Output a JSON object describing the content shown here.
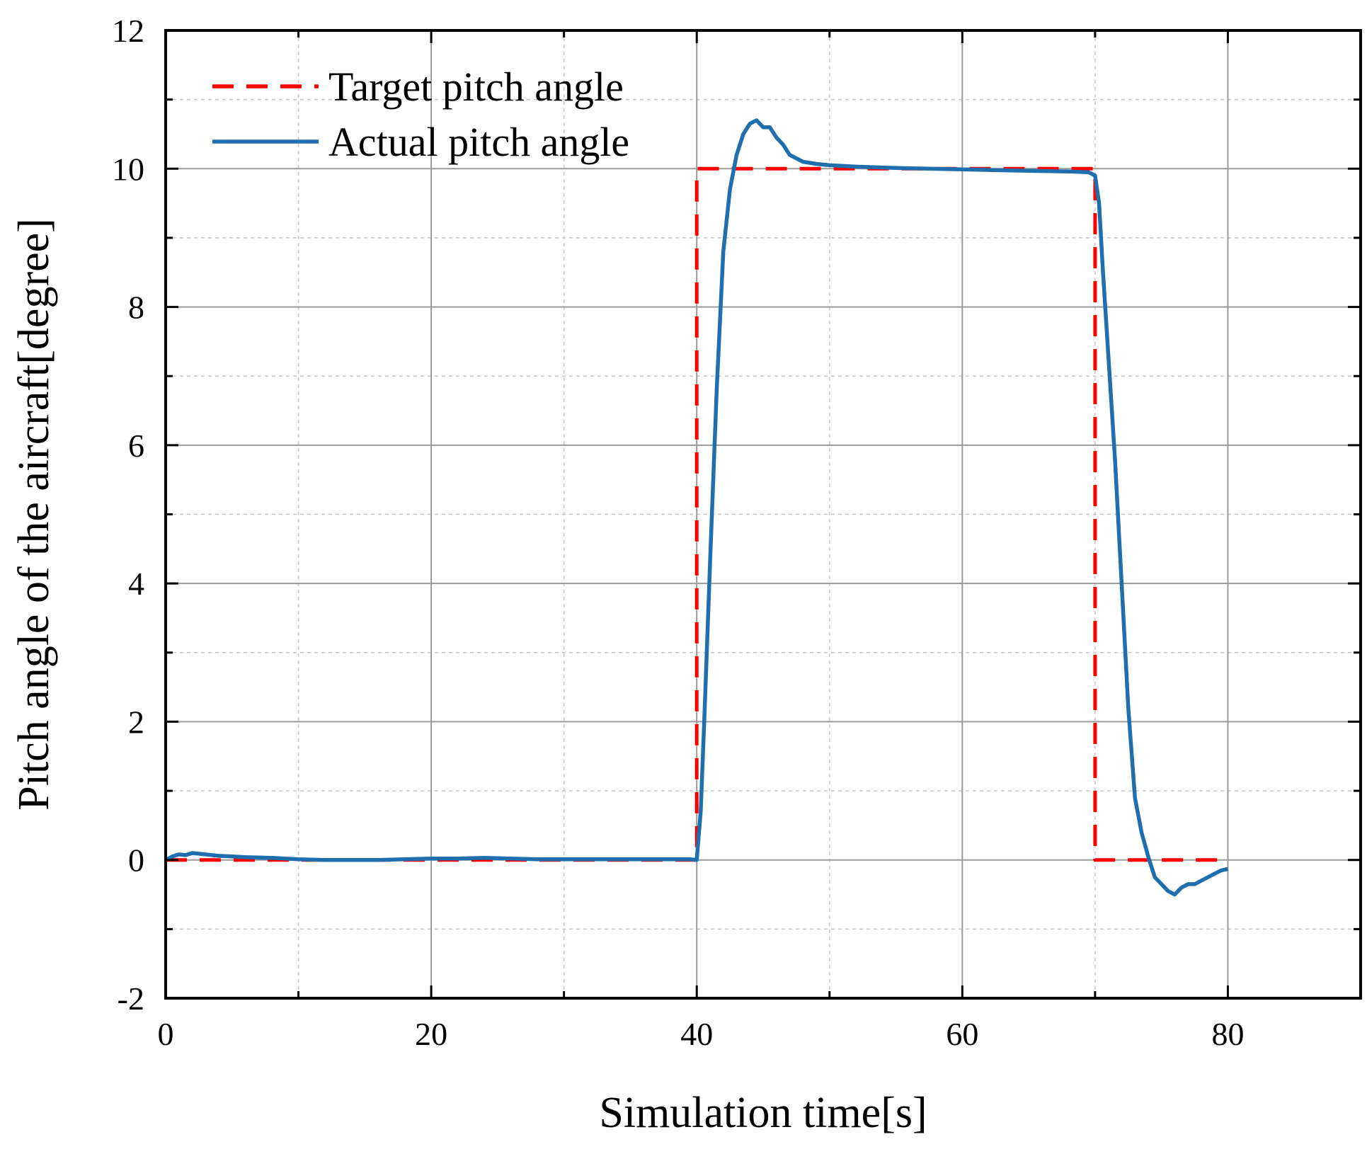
{
  "chart_data": {
    "type": "line",
    "title": "",
    "xlabel": "Simulation time[s]",
    "ylabel": "Pitch angle of the aircraft[degree]",
    "xlim": [
      0,
      90
    ],
    "ylim": [
      -2,
      12
    ],
    "xticks": [
      0,
      20,
      40,
      60,
      80
    ],
    "xtick_labels": [
      "0",
      "20",
      "40",
      "60",
      "80"
    ],
    "yticks": [
      -2,
      0,
      2,
      4,
      6,
      8,
      10,
      12
    ],
    "ytick_labels": [
      "-2",
      "0",
      "2",
      "4",
      "6",
      "8",
      "10",
      "12"
    ],
    "x_minor_step": 10,
    "y_minor_step": 1,
    "grid": true,
    "legend_position": "top-left",
    "series": [
      {
        "name": "Target pitch angle",
        "color": "#ff0000",
        "style": "dashed",
        "x": [
          0,
          40,
          40,
          70,
          70,
          80
        ],
        "y": [
          0,
          0,
          10,
          10,
          0,
          0
        ]
      },
      {
        "name": "Actual pitch angle",
        "color": "#1f6faf",
        "style": "solid",
        "x": [
          0,
          0.5,
          1,
          1.5,
          2,
          2.5,
          3,
          4,
          5,
          6,
          8,
          10,
          12,
          14,
          16,
          18,
          20,
          22,
          24,
          26,
          28,
          30,
          32,
          34,
          36,
          38,
          39.5,
          40,
          40.3,
          40.6,
          41,
          41.5,
          42,
          42.5,
          43,
          43.5,
          44,
          44.5,
          45,
          45.5,
          46,
          46.5,
          47,
          48,
          49,
          50,
          52,
          55,
          60,
          65,
          68,
          69.5,
          70,
          70.3,
          70.6,
          71,
          71.5,
          72,
          72.5,
          73,
          73.5,
          74,
          74.5,
          75,
          75.5,
          76,
          76.5,
          77,
          77.5,
          78,
          78.5,
          79,
          79.5,
          80
        ],
        "y": [
          0,
          0.05,
          0.08,
          0.07,
          0.1,
          0.09,
          0.08,
          0.06,
          0.05,
          0.04,
          0.03,
          0.01,
          0,
          0,
          0,
          0.01,
          0.02,
          0.02,
          0.03,
          0.02,
          0.01,
          0.01,
          0.01,
          0.01,
          0.01,
          0.01,
          0.01,
          0,
          0.7,
          2.2,
          4.3,
          6.8,
          8.8,
          9.7,
          10.2,
          10.5,
          10.65,
          10.7,
          10.6,
          10.6,
          10.45,
          10.35,
          10.2,
          10.1,
          10.07,
          10.05,
          10.03,
          10.01,
          9.99,
          9.97,
          9.96,
          9.95,
          9.9,
          9.5,
          8.5,
          7.3,
          5.8,
          4.0,
          2.2,
          0.9,
          0.4,
          0.05,
          -0.25,
          -0.35,
          -0.45,
          -0.5,
          -0.4,
          -0.35,
          -0.35,
          -0.3,
          -0.25,
          -0.2,
          -0.15,
          -0.13
        ]
      }
    ]
  }
}
